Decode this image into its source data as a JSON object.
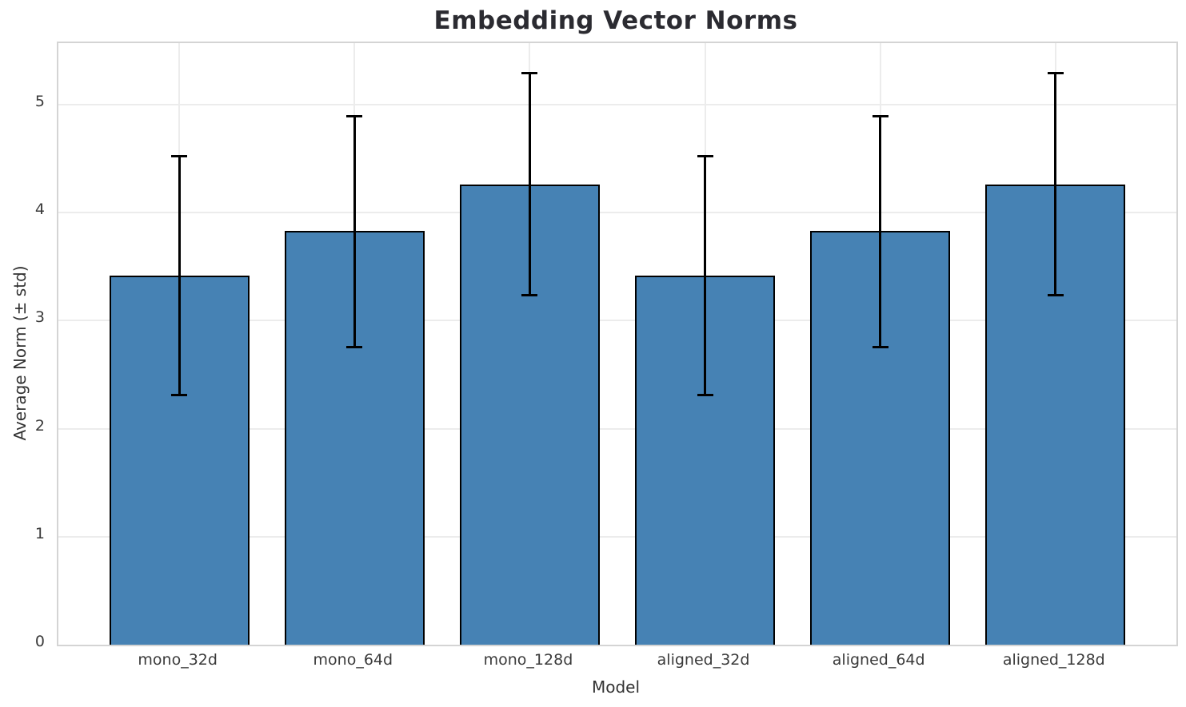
{
  "title": "Embedding Vector Norms",
  "chart_data": {
    "type": "bar",
    "title": "Embedding Vector Norms",
    "xlabel": "Model",
    "ylabel": "Average Norm (± std)",
    "categories": [
      "mono_32d",
      "mono_64d",
      "mono_128d",
      "aligned_32d",
      "aligned_64d",
      "aligned_128d"
    ],
    "values": [
      3.42,
      3.83,
      4.26,
      3.42,
      3.83,
      4.26
    ],
    "errors": [
      1.11,
      1.07,
      1.03,
      1.11,
      1.07,
      1.03
    ],
    "error_tops": [
      4.53,
      4.9,
      5.3,
      4.53,
      4.9,
      5.3
    ],
    "error_bottoms": [
      2.31,
      2.75,
      3.23,
      2.31,
      2.75,
      3.23
    ],
    "ylim": [
      0,
      5.57
    ],
    "yticks": [
      0,
      1,
      2,
      3,
      4,
      5
    ],
    "grid": true,
    "legend": "none",
    "bar_color": "#4682b4",
    "bar_edge_color": "#000000",
    "error_color": "#000000",
    "grid_color": "#ececec",
    "spine_color": "#d4d4d4",
    "text_color": "#3a3a3a"
  }
}
